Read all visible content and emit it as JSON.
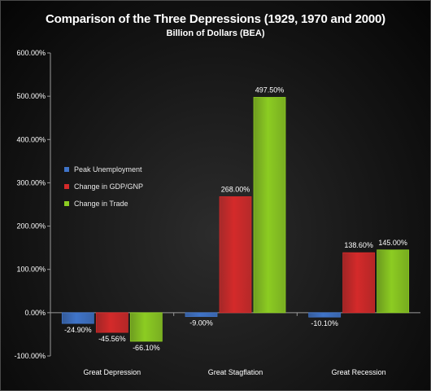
{
  "chart_data": {
    "type": "bar",
    "title": "Comparison of the Three Depressions (1929, 1970 and 2000)",
    "subtitle": "Billion of Dollars (BEA)",
    "categories": [
      "Great Depression",
      "Great Stagflation",
      "Great Recession"
    ],
    "series": [
      {
        "name": "Peak Unemployment",
        "color": "#3f74c9",
        "values": [
          -24.9,
          -9.0,
          -10.1
        ],
        "labels": [
          "-24.90%",
          "-9.00%",
          "-10.10%"
        ]
      },
      {
        "name": "Change in GDP/GNP",
        "color": "#d42a2a",
        "values": [
          -45.56,
          268.0,
          138.6
        ],
        "labels": [
          "-45.56%",
          "268.00%",
          "138.60%"
        ]
      },
      {
        "name": "Change in Trade",
        "color": "#8ccc22",
        "values": [
          -66.1,
          497.5,
          145.0
        ],
        "labels": [
          "-66.10%",
          "497.50%",
          "145.00%"
        ]
      }
    ],
    "ylim": [
      -100,
      600
    ],
    "yticks": [
      600,
      500,
      400,
      300,
      200,
      100,
      0,
      -100
    ],
    "ytick_labels": [
      "600.00%",
      "500.00%",
      "400.00%",
      "300.00%",
      "200.00%",
      "100.00%",
      "0.00%",
      "-100.00%"
    ],
    "xlabel": "",
    "ylabel": "",
    "grid": false,
    "legend_position": "inside-left"
  }
}
